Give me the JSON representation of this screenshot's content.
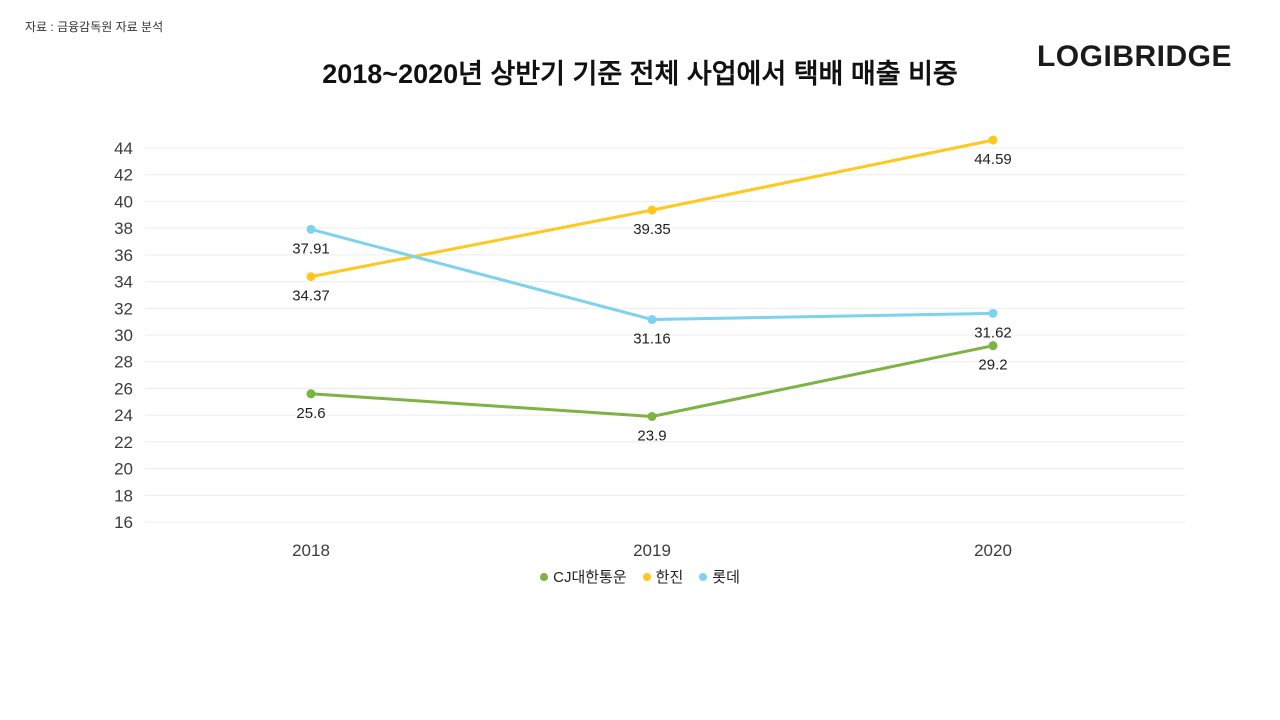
{
  "source_note": "자료 : 금융감독원 자료 분석",
  "logo": "LOGIBRIDGE",
  "chart_data": {
    "type": "line",
    "title": "2018~2020년 상반기 기준 전체 사업에서 택배 매출 비중",
    "categories": [
      "2018",
      "2019",
      "2020"
    ],
    "series": [
      {
        "name": "CJ대한통운",
        "color": "#7CB342",
        "values": [
          25.6,
          23.9,
          29.2
        ]
      },
      {
        "name": "한진",
        "color": "#FFC81E",
        "values": [
          34.37,
          39.35,
          44.59
        ]
      },
      {
        "name": "롯데",
        "color": "#7DD2F0",
        "values": [
          37.91,
          31.16,
          31.62
        ]
      }
    ],
    "xlabel": "",
    "ylabel": "",
    "ylim": [
      16,
      44
    ],
    "ytick_step": 2,
    "grid": true,
    "legend_position": "bottom",
    "value_labels_shown": true
  }
}
